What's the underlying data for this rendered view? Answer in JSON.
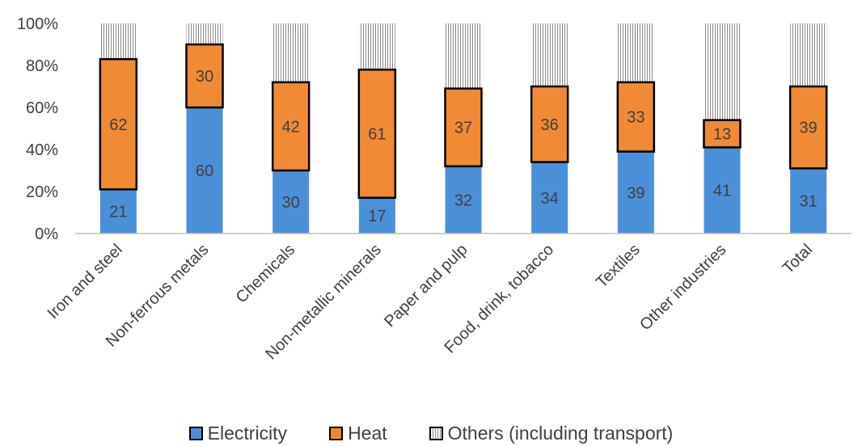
{
  "chart_data": {
    "type": "bar",
    "stacked": true,
    "normalized": true,
    "title": "",
    "xlabel": "",
    "ylabel": "",
    "ylim": [
      0,
      100
    ],
    "yticks": [
      "0%",
      "20%",
      "40%",
      "60%",
      "80%",
      "100%"
    ],
    "grid": false,
    "legend_position": "bottom",
    "categories": [
      "Iron and steel",
      "Non-ferrous metals",
      "Chemicals",
      "Non-metallic minerals",
      "Paper and pulp",
      "Food, drink, tobacco",
      "Textiles",
      "Other industries",
      "Total"
    ],
    "series": [
      {
        "name": "Electricity",
        "values": [
          21,
          60,
          30,
          17,
          32,
          34,
          39,
          41,
          31
        ],
        "color": "#4a90d9"
      },
      {
        "name": "Heat",
        "values": [
          62,
          30,
          42,
          61,
          37,
          36,
          33,
          13,
          39
        ],
        "color": "#f08a34"
      },
      {
        "name": "Others (including transport)",
        "values": [
          17,
          10,
          28,
          22,
          31,
          30,
          28,
          46,
          30
        ],
        "pattern": "vertical-hatch"
      }
    ]
  }
}
